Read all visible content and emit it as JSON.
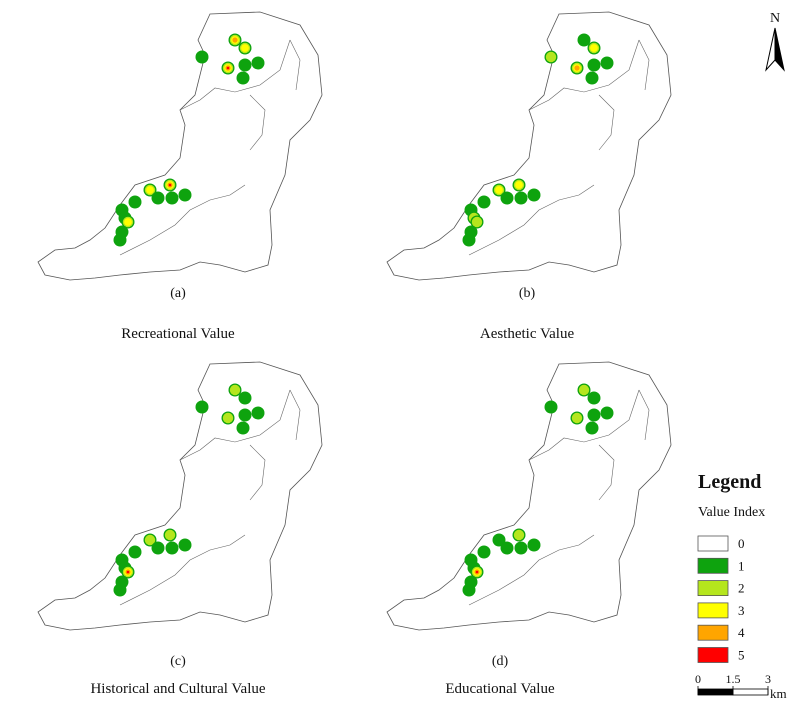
{
  "panels": [
    {
      "label": "(a)",
      "title": "Recreational Value"
    },
    {
      "label": "(b)",
      "title": "Aesthetic Value"
    },
    {
      "label": "(c)",
      "title": "Historical and Cultural Value"
    },
    {
      "label": "(d)",
      "title": "Educational Value"
    }
  ],
  "north": "N",
  "legend": {
    "title": "Legend",
    "subtitle": "Value Index",
    "items": [
      {
        "label": "0",
        "color": "#ffffff"
      },
      {
        "label": "1",
        "color": "#0ea30e"
      },
      {
        "label": "2",
        "color": "#b5e61d"
      },
      {
        "label": "3",
        "color": "#ffff00"
      },
      {
        "label": "4",
        "color": "#ffa500"
      },
      {
        "label": "5",
        "color": "#ff0000"
      }
    ]
  },
  "scale_bar": {
    "ticks": [
      0,
      1.5,
      3
    ],
    "unit": "km"
  }
}
